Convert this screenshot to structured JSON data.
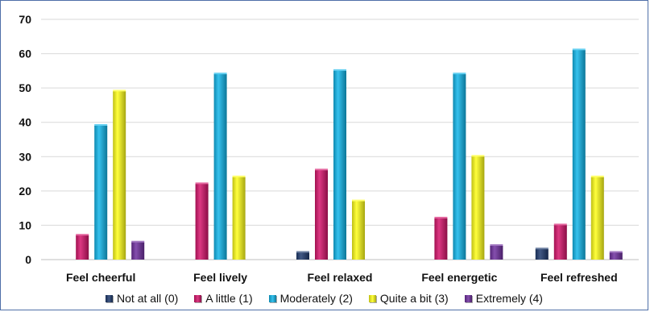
{
  "chart_data": {
    "type": "bar",
    "categories": [
      "Feel cheerful",
      "Feel lively",
      "Feel relaxed",
      "Feel energetic",
      "Feel refreshed"
    ],
    "series": [
      {
        "name": "Not at all (0)",
        "color": "#1f3b6e",
        "values": [
          0,
          0,
          2,
          0,
          3
        ]
      },
      {
        "name": "A little (1)",
        "color": "#d6156c",
        "values": [
          7,
          22,
          26,
          12,
          10
        ]
      },
      {
        "name": "Moderately (2)",
        "color": "#13b6ea",
        "values": [
          39,
          54,
          55,
          54,
          61
        ]
      },
      {
        "name": "Quite a bit (3)",
        "color": "#ffff1a",
        "values": [
          49,
          24,
          17,
          30,
          24
        ]
      },
      {
        "name": "Extremely (4)",
        "color": "#7030a0",
        "values": [
          5,
          0,
          0,
          4,
          2
        ]
      }
    ],
    "yticks": [
      "0",
      "10",
      "20",
      "30",
      "40",
      "50",
      "60",
      "70"
    ],
    "ylim": [
      0,
      70
    ],
    "grid": true,
    "legend_position": "bottom"
  }
}
